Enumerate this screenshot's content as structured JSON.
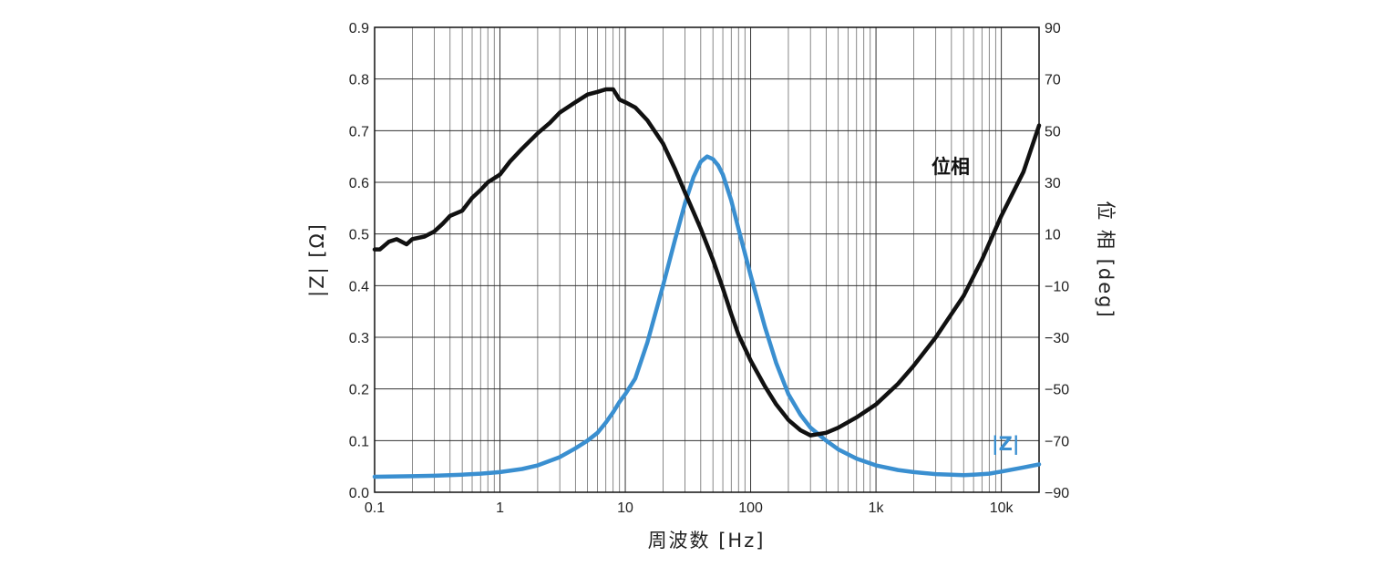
{
  "chart_data": {
    "type": "line",
    "x_scale": "log",
    "xlim": [
      0.1,
      20000
    ],
    "xlabel": "周波数 [Hz]",
    "x_ticks": [
      {
        "value": 0.1,
        "label": "0.1"
      },
      {
        "value": 1,
        "label": "1"
      },
      {
        "value": 10,
        "label": "10"
      },
      {
        "value": 100,
        "label": "100"
      },
      {
        "value": 1000,
        "label": "1k"
      },
      {
        "value": 10000,
        "label": "10k"
      }
    ],
    "left_axis": {
      "label": "|Z| [Ω]",
      "label_color": "#3a8fd0",
      "ylim": [
        0,
        0.9
      ],
      "ticks": [
        "0.0",
        "0.1",
        "0.2",
        "0.3",
        "0.4",
        "0.5",
        "0.6",
        "0.7",
        "0.8",
        "0.9"
      ]
    },
    "right_axis": {
      "label": "位 相 [deg]",
      "ylim": [
        -90,
        90
      ],
      "ticks": [
        "−90",
        "−70",
        "−50",
        "−30",
        "−10",
        "10",
        "30",
        "50",
        "70",
        "90"
      ]
    },
    "grid": true,
    "series": [
      {
        "name": "|Z|",
        "axis": "left",
        "color": "#3a8fd0",
        "points": [
          [
            0.1,
            0.03
          ],
          [
            0.2,
            0.031
          ],
          [
            0.3,
            0.032
          ],
          [
            0.5,
            0.034
          ],
          [
            0.7,
            0.036
          ],
          [
            1,
            0.039
          ],
          [
            1.5,
            0.045
          ],
          [
            2,
            0.052
          ],
          [
            3,
            0.068
          ],
          [
            4,
            0.085
          ],
          [
            5,
            0.1
          ],
          [
            6,
            0.115
          ],
          [
            7,
            0.135
          ],
          [
            8,
            0.155
          ],
          [
            9,
            0.175
          ],
          [
            10,
            0.19
          ],
          [
            12,
            0.22
          ],
          [
            15,
            0.29
          ],
          [
            20,
            0.4
          ],
          [
            25,
            0.49
          ],
          [
            30,
            0.56
          ],
          [
            35,
            0.61
          ],
          [
            40,
            0.64
          ],
          [
            45,
            0.65
          ],
          [
            50,
            0.645
          ],
          [
            55,
            0.633
          ],
          [
            60,
            0.615
          ],
          [
            70,
            0.565
          ],
          [
            80,
            0.51
          ],
          [
            100,
            0.42
          ],
          [
            130,
            0.32
          ],
          [
            160,
            0.25
          ],
          [
            200,
            0.19
          ],
          [
            250,
            0.15
          ],
          [
            300,
            0.125
          ],
          [
            400,
            0.1
          ],
          [
            500,
            0.083
          ],
          [
            700,
            0.065
          ],
          [
            1000,
            0.052
          ],
          [
            1500,
            0.043
          ],
          [
            2000,
            0.039
          ],
          [
            3000,
            0.035
          ],
          [
            4000,
            0.034
          ],
          [
            5000,
            0.033
          ],
          [
            6000,
            0.034
          ],
          [
            8000,
            0.036
          ],
          [
            10000,
            0.04
          ],
          [
            15000,
            0.048
          ],
          [
            20000,
            0.054
          ]
        ]
      },
      {
        "name": "位相",
        "axis": "right",
        "color": "#111111",
        "points": [
          [
            0.1,
            4
          ],
          [
            0.11,
            4
          ],
          [
            0.13,
            7
          ],
          [
            0.15,
            8
          ],
          [
            0.18,
            6
          ],
          [
            0.2,
            8
          ],
          [
            0.25,
            9
          ],
          [
            0.3,
            11
          ],
          [
            0.35,
            14
          ],
          [
            0.4,
            17
          ],
          [
            0.5,
            19
          ],
          [
            0.6,
            24
          ],
          [
            0.7,
            27
          ],
          [
            0.8,
            30
          ],
          [
            1,
            33
          ],
          [
            1.2,
            38
          ],
          [
            1.5,
            43
          ],
          [
            2,
            49
          ],
          [
            2.5,
            53
          ],
          [
            3,
            57
          ],
          [
            4,
            61
          ],
          [
            5,
            64
          ],
          [
            6,
            65
          ],
          [
            7,
            66
          ],
          [
            8,
            66
          ],
          [
            9,
            62
          ],
          [
            10,
            61
          ],
          [
            12,
            59
          ],
          [
            15,
            54
          ],
          [
            20,
            45
          ],
          [
            25,
            35
          ],
          [
            30,
            26
          ],
          [
            40,
            12
          ],
          [
            50,
            0
          ],
          [
            60,
            -11
          ],
          [
            70,
            -21
          ],
          [
            80,
            -29
          ],
          [
            100,
            -39
          ],
          [
            130,
            -49
          ],
          [
            160,
            -56
          ],
          [
            200,
            -62
          ],
          [
            250,
            -66
          ],
          [
            300,
            -68
          ],
          [
            400,
            -67
          ],
          [
            500,
            -65
          ],
          [
            700,
            -61
          ],
          [
            1000,
            -56
          ],
          [
            1500,
            -48
          ],
          [
            2000,
            -41
          ],
          [
            3000,
            -30
          ],
          [
            5000,
            -14
          ],
          [
            7000,
            0
          ],
          [
            10000,
            17
          ],
          [
            15000,
            34
          ],
          [
            20000,
            52
          ]
        ]
      }
    ],
    "annotations": [
      {
        "text": "位相",
        "color": "#111111"
      },
      {
        "text": "|Z|",
        "color": "#3a8fd0"
      }
    ]
  }
}
